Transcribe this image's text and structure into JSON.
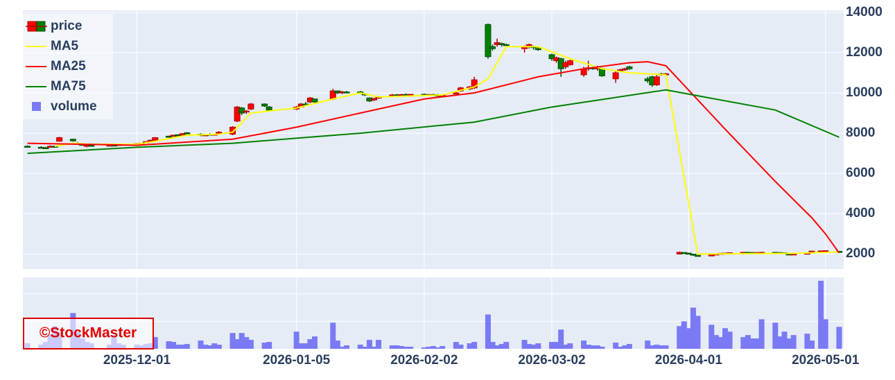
{
  "chart_data": {
    "type": "candlestick",
    "candle_name": "price",
    "volume_name": "volume",
    "increasing_color": "#ff0000",
    "decreasing_color": "#008000",
    "volume_color": "#7a7af5",
    "watermark": "©StockMaster",
    "xlim": [
      "2025-11-06",
      "2026-05-05"
    ],
    "xticks": [
      "2025-12-01",
      "2026-01-05",
      "2026-02-02",
      "2026-03-02",
      "2026-04-01",
      "2026-05-01"
    ],
    "ylim": [
      1250,
      14100
    ],
    "yticks": [
      2000,
      4000,
      6000,
      8000,
      10000,
      12000,
      14000
    ],
    "volume_ylim": [
      0,
      2600000
    ],
    "volume_gridlines": [
      1000000,
      2000000
    ],
    "grid": true,
    "x": [
      "2025-11-07",
      "2025-11-10",
      "2025-11-11",
      "2025-11-12",
      "2025-11-13",
      "2025-11-14",
      "2025-11-17",
      "2025-11-18",
      "2025-11-19",
      "2025-11-20",
      "2025-11-21",
      "2025-11-25",
      "2025-11-26",
      "2025-11-27",
      "2025-11-28",
      "2025-12-01",
      "2025-12-02",
      "2025-12-03",
      "2025-12-04",
      "2025-12-05",
      "2025-12-08",
      "2025-12-09",
      "2025-12-10",
      "2025-12-11",
      "2025-12-12",
      "2025-12-15",
      "2025-12-16",
      "2025-12-17",
      "2025-12-18",
      "2025-12-19",
      "2025-12-22",
      "2025-12-23",
      "2025-12-24",
      "2025-12-25",
      "2025-12-26",
      "2025-12-29",
      "2025-12-30",
      "2026-01-05",
      "2026-01-06",
      "2026-01-07",
      "2026-01-08",
      "2026-01-09",
      "2026-01-13",
      "2026-01-14",
      "2026-01-15",
      "2026-01-16",
      "2026-01-19",
      "2026-01-20",
      "2026-01-21",
      "2026-01-22",
      "2026-01-23",
      "2026-01-26",
      "2026-01-27",
      "2026-01-28",
      "2026-01-29",
      "2026-01-30",
      "2026-02-02",
      "2026-02-03",
      "2026-02-04",
      "2026-02-05",
      "2026-02-06",
      "2026-02-09",
      "2026-02-10",
      "2026-02-12",
      "2026-02-13",
      "2026-02-16",
      "2026-02-17",
      "2026-02-18",
      "2026-02-19",
      "2026-02-20",
      "2026-02-24",
      "2026-02-25",
      "2026-02-26",
      "2026-02-27",
      "2026-03-02",
      "2026-03-03",
      "2026-03-04",
      "2026-03-05",
      "2026-03-06",
      "2026-03-09",
      "2026-03-10",
      "2026-03-11",
      "2026-03-12",
      "2026-03-13",
      "2026-03-16",
      "2026-03-17",
      "2026-03-18",
      "2026-03-19",
      "2026-03-23",
      "2026-03-24",
      "2026-03-25",
      "2026-03-26",
      "2026-03-27",
      "2026-03-30",
      "2026-03-31",
      "2026-04-01",
      "2026-04-02",
      "2026-04-03",
      "2026-04-06",
      "2026-04-07",
      "2026-04-08",
      "2026-04-09",
      "2026-04-10",
      "2026-04-13",
      "2026-04-14",
      "2026-04-15",
      "2026-04-16",
      "2026-04-17",
      "2026-04-20",
      "2026-04-21",
      "2026-04-22",
      "2026-04-23",
      "2026-04-24",
      "2026-04-27",
      "2026-04-28",
      "2026-04-30",
      "2026-05-01",
      "2026-05-04"
    ],
    "open": [
      7350,
      7300,
      7280,
      7300,
      7350,
      7600,
      7700,
      7500,
      7450,
      7350,
      7400,
      7380,
      7410,
      7400,
      7440,
      7450,
      7480,
      7520,
      7580,
      7650,
      7850,
      7850,
      7920,
      7900,
      8020,
      7950,
      7900,
      7950,
      7920,
      7960,
      7950,
      8600,
      9250,
      9050,
      9200,
      9450,
      9300,
      9200,
      9300,
      9450,
      9550,
      9700,
      9700,
      10100,
      10000,
      10050,
      10050,
      9950,
      9750,
      9650,
      9750,
      9850,
      9900,
      9880,
      9920,
      9900,
      9930,
      9900,
      9920,
      9900,
      9870,
      9950,
      10100,
      10200,
      10250,
      13400,
      12300,
      12400,
      12450,
      12400,
      12200,
      12300,
      12300,
      12200,
      11900,
      11600,
      11700,
      11300,
      11400,
      10900,
      11200,
      11250,
      11200,
      11200,
      10700,
      11100,
      11150,
      11300,
      10700,
      10800,
      10400,
      10950,
      10900,
      2000,
      2070,
      2040,
      1990,
      1930,
      1900,
      1960,
      2000,
      2030,
      2040,
      2060,
      2080,
      2070,
      2060,
      2070,
      2080,
      2070,
      2060,
      2000,
      1980,
      2000,
      2100,
      2140,
      2150,
      2130
    ],
    "high": [
      7400,
      7350,
      7320,
      7400,
      7380,
      7820,
      7720,
      7550,
      7500,
      7450,
      7430,
      7420,
      7440,
      7460,
      7480,
      7500,
      7520,
      7600,
      7680,
      7800,
      7880,
      7920,
      7950,
      8000,
      8050,
      8000,
      7960,
      8000,
      7980,
      8100,
      8350,
      9350,
      9300,
      9150,
      9500,
      9480,
      9350,
      9350,
      9500,
      9550,
      9800,
      9720,
      10200,
      10120,
      10100,
      10100,
      10100,
      10000,
      9780,
      9750,
      9850,
      9950,
      9950,
      9950,
      9980,
      9950,
      9980,
      9950,
      9960,
      9950,
      9930,
      10050,
      10300,
      10350,
      10800,
      13450,
      12400,
      12700,
      12500,
      12450,
      12350,
      12450,
      12350,
      12280,
      11950,
      11800,
      11750,
      11600,
      11650,
      11300,
      11600,
      11300,
      11350,
      11250,
      11100,
      11200,
      11250,
      11350,
      10800,
      10850,
      10900,
      11000,
      11000,
      2120,
      2080,
      2060,
      2000,
      1950,
      1980,
      2020,
      2050,
      2060,
      2080,
      2100,
      2100,
      2090,
      2090,
      2110,
      2100,
      2090,
      2080,
      2030,
      2020,
      2050,
      2160,
      2170,
      2180,
      2150
    ],
    "low": [
      7300,
      7250,
      7230,
      7280,
      7280,
      7580,
      7580,
      7420,
      7400,
      7300,
      7350,
      7350,
      7370,
      7390,
      7420,
      7430,
      7460,
      7500,
      7550,
      7620,
      7780,
      7820,
      7850,
      7880,
      7950,
      7850,
      7860,
      7900,
      7880,
      7950,
      7900,
      8550,
      8900,
      8950,
      9150,
      9300,
      9100,
      9150,
      9280,
      9350,
      9500,
      9500,
      9650,
      9950,
      9950,
      10000,
      9950,
      9850,
      9550,
      9600,
      9700,
      9800,
      9850,
      9850,
      9880,
      9870,
      9880,
      9860,
      9880,
      9850,
      9840,
      9920,
      10050,
      10150,
      10200,
      11700,
      12100,
      12300,
      12300,
      12350,
      12000,
      12200,
      12150,
      12100,
      11600,
      11500,
      10800,
      11200,
      11350,
      10800,
      11100,
      11150,
      11100,
      10800,
      10500,
      11050,
      11100,
      11150,
      10500,
      10300,
      10350,
      10850,
      10850,
      1980,
      2020,
      2000,
      1900,
      1880,
      1890,
      1940,
      1980,
      2000,
      2020,
      2040,
      2050,
      2040,
      2040,
      2050,
      2050,
      2040,
      2020,
      1950,
      1960,
      1990,
      2080,
      2110,
      2120,
      2080
    ],
    "close": [
      7330,
      7280,
      7260,
      7350,
      7300,
      7780,
      7620,
      7450,
      7430,
      7420,
      7380,
      7410,
      7390,
      7440,
      7460,
      7480,
      7500,
      7580,
      7650,
      7780,
      7800,
      7900,
      7880,
      7980,
      7970,
      7900,
      7920,
      7940,
      7950,
      8050,
      8300,
      9300,
      9000,
      9100,
      9450,
      9350,
      9150,
      9300,
      9450,
      9400,
      9750,
      9550,
      10100,
      10000,
      10050,
      10020,
      9980,
      9900,
      9600,
      9720,
      9800,
      9900,
      9880,
      9920,
      9900,
      9930,
      9900,
      9920,
      9900,
      9870,
      9910,
      10000,
      10250,
      10300,
      10650,
      11800,
      12200,
      12500,
      12400,
      12380,
      12300,
      12400,
      12250,
      12150,
      11700,
      11750,
      11200,
      11500,
      11600,
      11200,
      11250,
      11200,
      11300,
      10850,
      11000,
      11150,
      11200,
      11200,
      10600,
      10400,
      10800,
      10900,
      10950,
      2080,
      2040,
      2020,
      1950,
      1900,
      1960,
      2000,
      2030,
      2040,
      2060,
      2080,
      2070,
      2060,
      2070,
      2080,
      2070,
      2060,
      2030,
      1980,
      2000,
      2040,
      2140,
      2150,
      2160,
      2100
    ],
    "volume": [
      200000,
      150000,
      250000,
      500000,
      825000,
      625000,
      1300000,
      625000,
      375000,
      250000,
      200000,
      150000,
      500000,
      200000,
      150000,
      150000,
      125000,
      175000,
      200000,
      425000,
      275000,
      250000,
      150000,
      150000,
      175000,
      300000,
      150000,
      125000,
      200000,
      150000,
      575000,
      350000,
      575000,
      425000,
      325000,
      225000,
      250000,
      625000,
      200000,
      200000,
      350000,
      450000,
      950000,
      300000,
      75000,
      125000,
      150000,
      75000,
      325000,
      75000,
      325000,
      125000,
      125000,
      100000,
      75000,
      75000,
      50000,
      75000,
      100000,
      50000,
      100000,
      250000,
      150000,
      200000,
      250000,
      1250000,
      250000,
      125000,
      175000,
      250000,
      325000,
      175000,
      150000,
      200000,
      250000,
      250000,
      700000,
      150000,
      200000,
      300000,
      150000,
      125000,
      125000,
      75000,
      225000,
      75000,
      125000,
      175000,
      300000,
      125000,
      150000,
      125000,
      125000,
      825000,
      1000000,
      750000,
      1500000,
      1200000,
      875000,
      500000,
      425000,
      750000,
      625000,
      425000,
      500000,
      375000,
      375000,
      1075000,
      950000,
      450000,
      625000,
      375000,
      500000,
      550000,
      300000,
      2475000,
      1075000,
      800000
    ],
    "series": [
      {
        "name": "MA5",
        "color": "#ffff00",
        "x": [
          "2025-11-13",
          "2025-11-17",
          "2025-11-21",
          "2025-12-01",
          "2025-12-05",
          "2025-12-12",
          "2025-12-19",
          "2025-12-22",
          "2025-12-26",
          "2026-01-05",
          "2026-01-13",
          "2026-01-19",
          "2026-01-23",
          "2026-02-06",
          "2026-02-13",
          "2026-02-16",
          "2026-02-20",
          "2026-02-27",
          "2026-03-06",
          "2026-03-13",
          "2026-03-19",
          "2026-03-27",
          "2026-04-03",
          "2026-04-10",
          "2026-04-24",
          "2026-05-04"
        ],
        "values": [
          7350,
          7500,
          7450,
          7450,
          7600,
          7900,
          7950,
          8050,
          9000,
          9250,
          9700,
          10000,
          9800,
          9900,
          10300,
          10700,
          12300,
          12300,
          11700,
          11200,
          11000,
          10900,
          1990,
          2010,
          2030,
          2100
        ]
      },
      {
        "name": "MA25",
        "color": "#ff0000",
        "x": [
          "2025-11-07",
          "2025-12-01",
          "2025-12-22",
          "2026-01-05",
          "2026-01-19",
          "2026-02-02",
          "2026-02-13",
          "2026-02-27",
          "2026-03-09",
          "2026-03-19",
          "2026-03-23",
          "2026-03-27",
          "2026-04-09",
          "2026-04-20",
          "2026-04-28",
          "2026-05-01",
          "2026-05-04"
        ],
        "values": [
          7500,
          7400,
          7700,
          8300,
          9000,
          9700,
          10000,
          10800,
          11200,
          11500,
          11550,
          11350,
          8200,
          5600,
          3800,
          3000,
          2050
        ]
      },
      {
        "name": "MA75",
        "color": "#008000",
        "x": [
          "2025-11-07",
          "2025-12-01",
          "2025-12-22",
          "2026-01-19",
          "2026-02-13",
          "2026-03-02",
          "2026-03-27",
          "2026-04-20",
          "2026-05-04"
        ],
        "values": [
          7000,
          7300,
          7500,
          8000,
          8550,
          9300,
          10150,
          9150,
          7800
        ]
      }
    ]
  }
}
